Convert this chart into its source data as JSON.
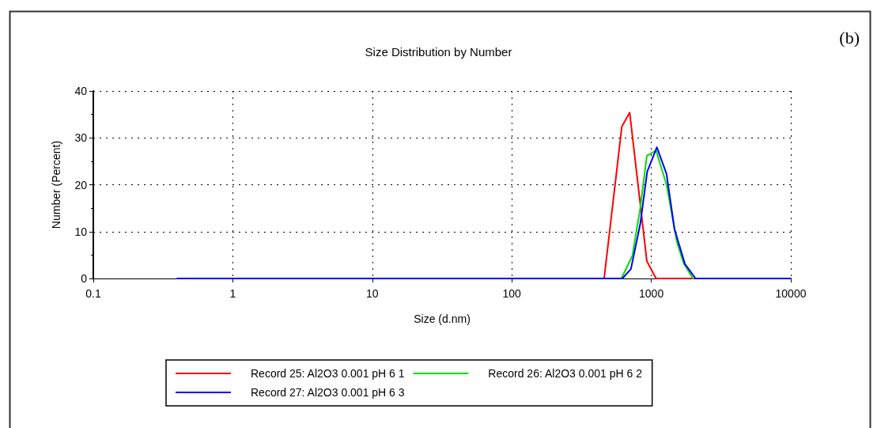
{
  "chart_data": {
    "type": "line",
    "title": "Size Distribution by Number",
    "xlabel": "Size (d.nm)",
    "ylabel": "Number (Percent)",
    "log": "x",
    "xlim": [
      0.1,
      10000
    ],
    "xticks": [
      0.1,
      1,
      10,
      100,
      1000,
      10000
    ],
    "ylim": [
      0,
      40
    ],
    "yticks": [
      0,
      10,
      20,
      30,
      40
    ],
    "grid": true,
    "legend": "bottom",
    "marker": "none",
    "line_style": "solid",
    "annotations": [
      "(b)"
    ],
    "series": [
      {
        "name": "Record 25: Al2O3 0.001 pH 6 1",
        "color": "#ff0000",
        "x": [
          459,
          615,
          700,
          929,
          1081,
          2000
        ],
        "values": [
          0,
          32.4,
          35.4,
          3.7,
          0,
          0
        ]
      },
      {
        "name": "Record 26: Al2O3 0.001 pH 6 2",
        "color": "#00e000",
        "x": [
          610,
          731,
          833,
          929,
          1081,
          1286,
          1531,
          1706,
          1990
        ],
        "values": [
          0,
          4.8,
          15,
          26.2,
          27.3,
          20,
          7.6,
          3.2,
          0
        ]
      },
      {
        "name": "Record 27: Al2O3 0.001 pH 6 3",
        "color": "#0000ff",
        "x": [
          0.4,
          620,
          714,
          833,
          935,
          1096,
          1286,
          1466,
          1742,
          2075,
          10000
        ],
        "values": [
          0,
          0,
          2.0,
          11.6,
          22.8,
          28.0,
          22.3,
          10.5,
          3.1,
          0,
          0
        ]
      }
    ]
  }
}
